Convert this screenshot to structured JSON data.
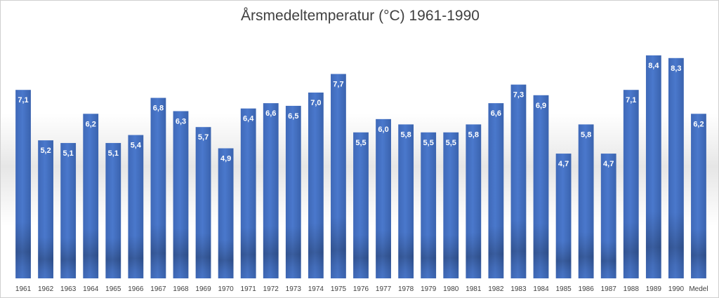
{
  "chart_data": {
    "type": "bar",
    "title": "Årsmedeltemperatur (°C) 1961-1990",
    "xlabel": "",
    "ylabel": "",
    "categories": [
      "1961",
      "1962",
      "1963",
      "1964",
      "1965",
      "1966",
      "1967",
      "1968",
      "1969",
      "1970",
      "1971",
      "1972",
      "1973",
      "1974",
      "1975",
      "1976",
      "1977",
      "1978",
      "1979",
      "1980",
      "1981",
      "1982",
      "1983",
      "1984",
      "1985",
      "1986",
      "1987",
      "1988",
      "1989",
      "1990",
      "Medel"
    ],
    "values": [
      7.1,
      5.2,
      5.1,
      6.2,
      5.1,
      5.4,
      6.8,
      6.3,
      5.7,
      4.9,
      6.4,
      6.6,
      6.5,
      7.0,
      7.7,
      5.5,
      6.0,
      5.8,
      5.5,
      5.5,
      5.8,
      6.6,
      7.3,
      6.9,
      4.7,
      5.8,
      4.7,
      7.1,
      8.4,
      8.3,
      6.2
    ],
    "value_labels": [
      "7,1",
      "5,2",
      "5,1",
      "6,2",
      "5,1",
      "5,4",
      "6,8",
      "6,3",
      "5,7",
      "4,9",
      "6,4",
      "6,6",
      "6,5",
      "7,0",
      "7,7",
      "5,5",
      "6,0",
      "5,8",
      "5,5",
      "5,5",
      "5,8",
      "6,6",
      "7,3",
      "6,9",
      "4,7",
      "5,8",
      "4,7",
      "7,1",
      "8,4",
      "8,3",
      "6,2"
    ],
    "ylim": [
      0,
      8.4
    ],
    "grid": false,
    "legend": "none",
    "colors": {
      "bar": "#4472c4",
      "bar_dark": "#2f559c",
      "bar_light": "#5b87d6"
    }
  }
}
